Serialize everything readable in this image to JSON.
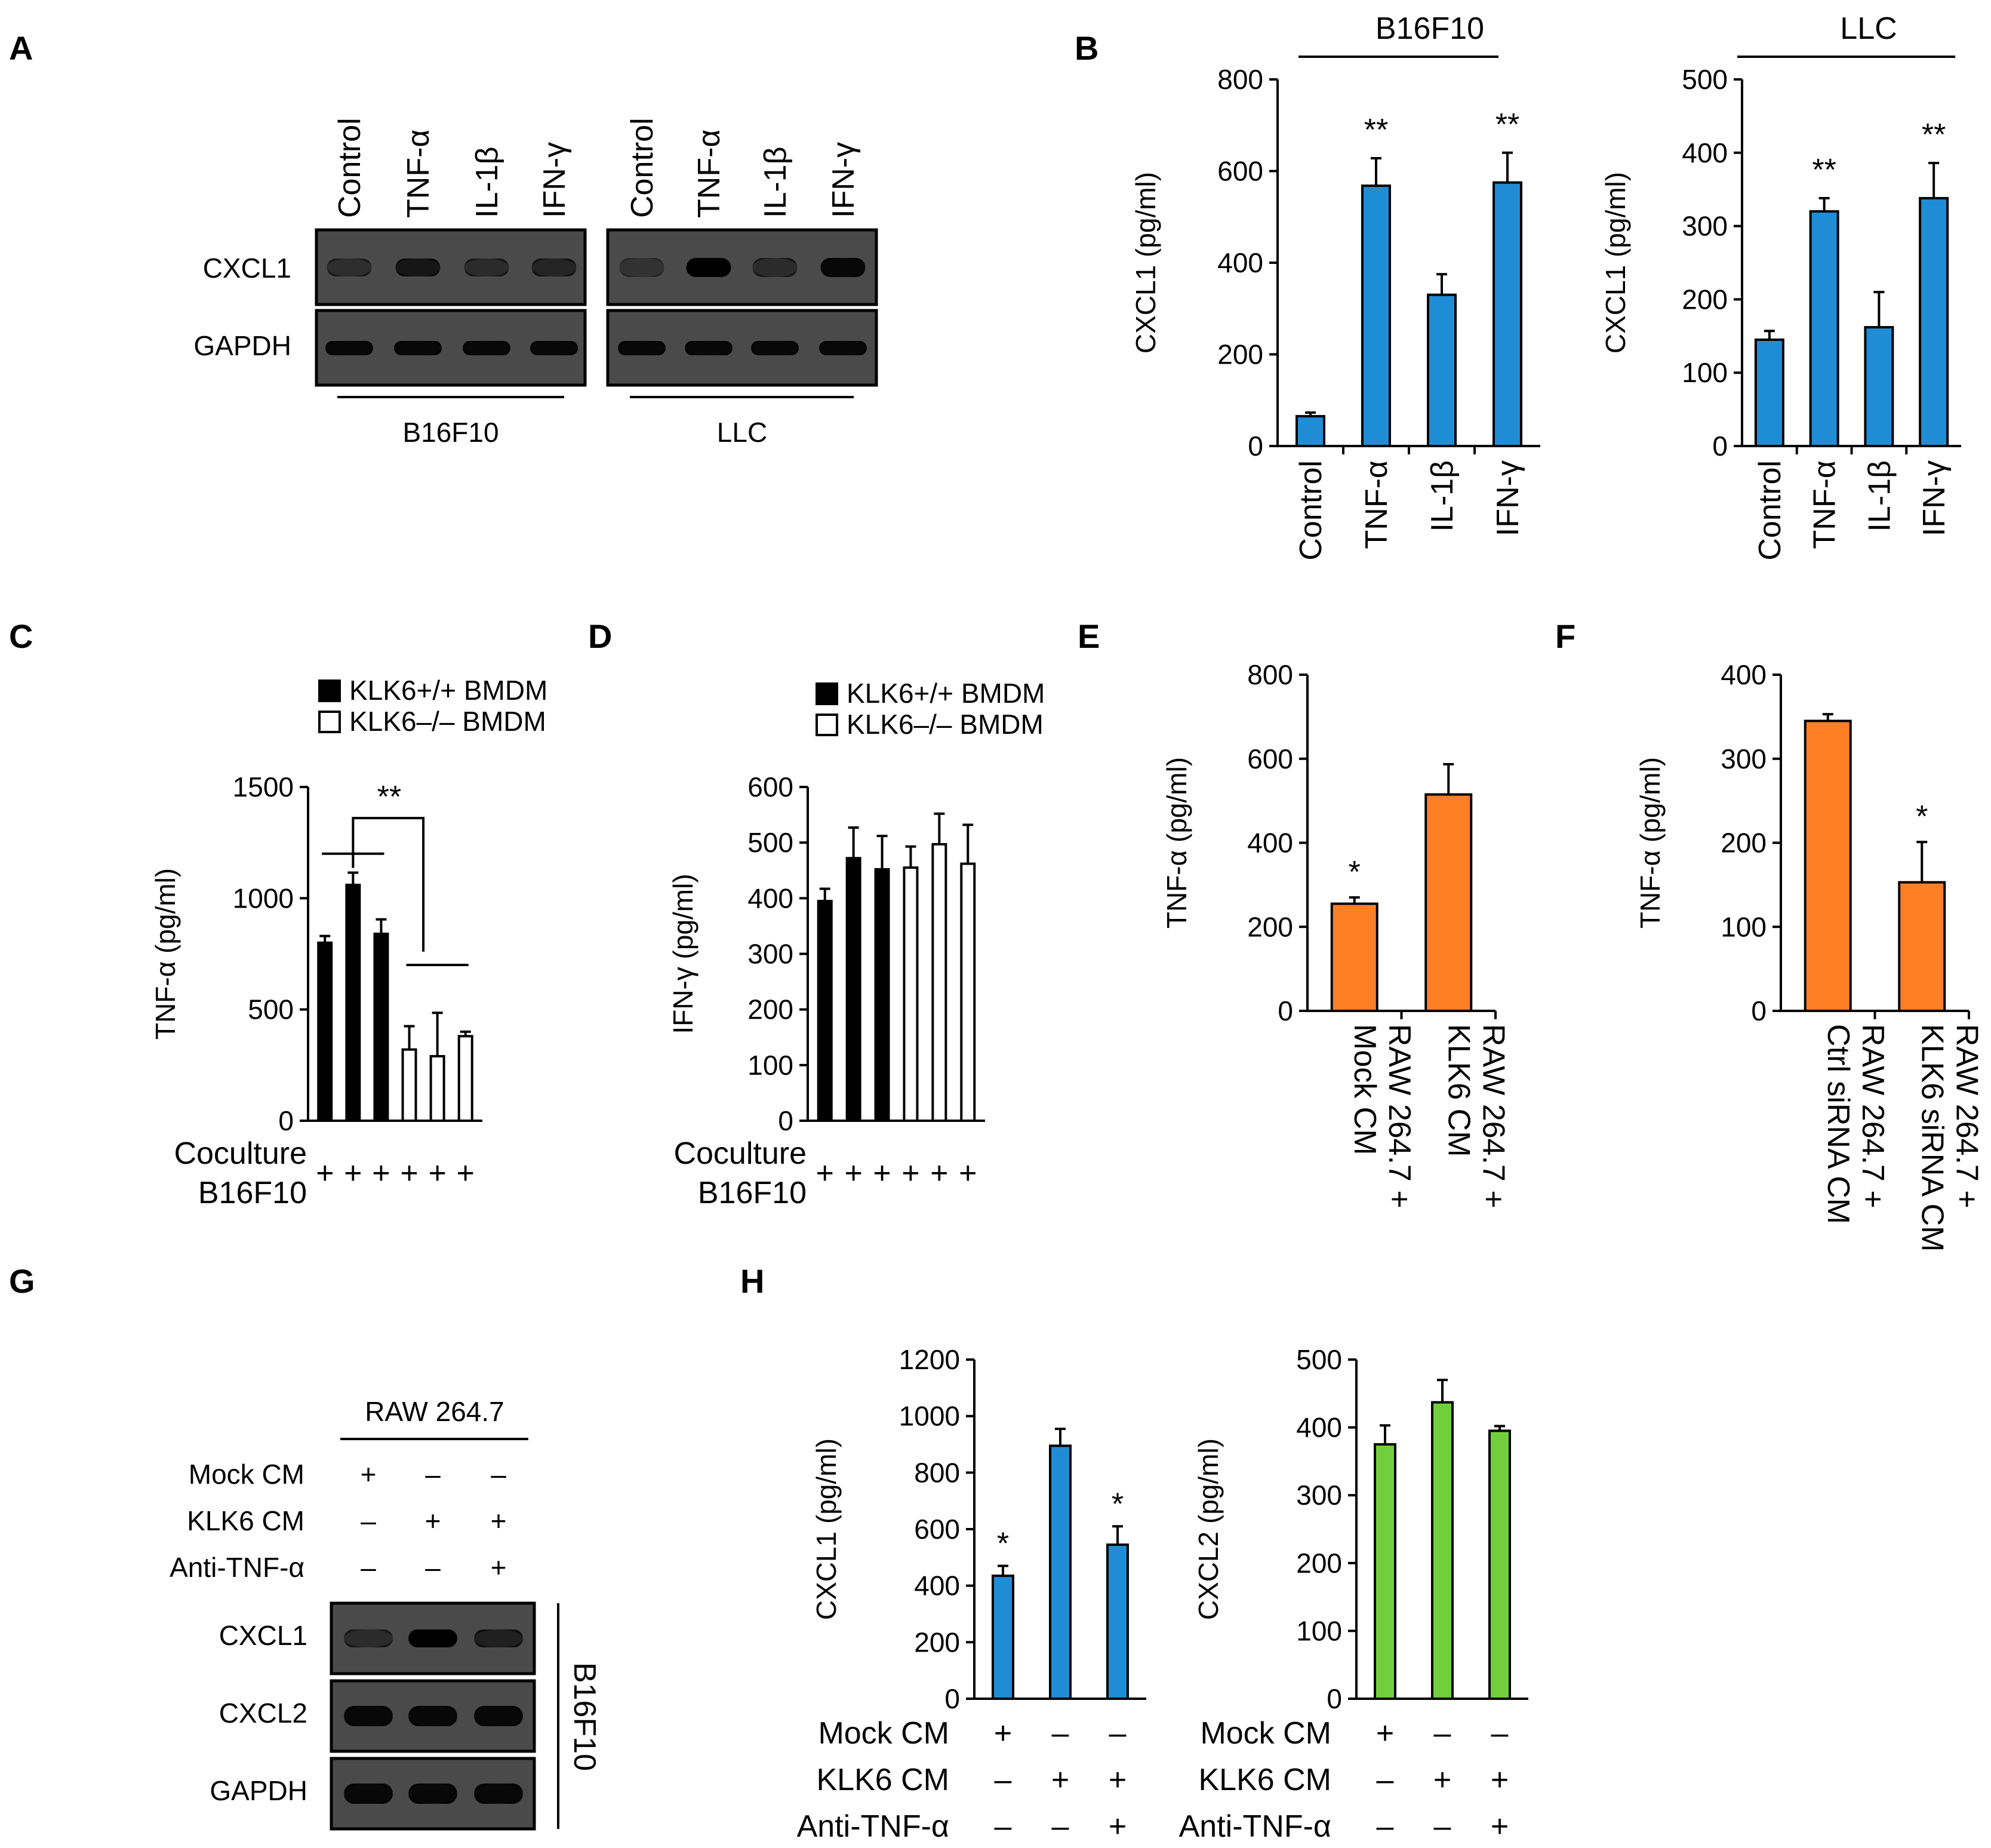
{
  "colors": {
    "blue": "#1f8dd6",
    "orange": "#ff7f27",
    "green": "#72cf3c",
    "black": "#000000",
    "white": "#ffffff",
    "gel_bg": "#4a4a4a"
  },
  "panel_letters": [
    "A",
    "B",
    "C",
    "D",
    "E",
    "F",
    "G",
    "H"
  ],
  "panel_a": {
    "lanes_left": [
      "Control",
      "TNF-α",
      "IL-1β",
      "IFN-γ"
    ],
    "lanes_right": [
      "Control",
      "TNF-α",
      "IL-1β",
      "IFN-γ"
    ],
    "rows": [
      "CXCL1",
      "GAPDH"
    ],
    "group_left": "B16F10",
    "group_right": "LLC",
    "band_intensity": {
      "CXCL1_left": [
        0.55,
        0.85,
        0.6,
        0.7
      ],
      "CXCL1_right": [
        0.35,
        1.0,
        0.6,
        0.95
      ],
      "GAPDH_left": [
        0.95,
        0.95,
        0.95,
        0.95
      ],
      "GAPDH_right": [
        0.95,
        0.95,
        0.95,
        0.95
      ]
    }
  },
  "panel_g": {
    "header": "RAW 264.7",
    "conditions": [
      {
        "label": "Mock CM",
        "marks": [
          "+",
          "–",
          "–"
        ]
      },
      {
        "label": "KLK6 CM",
        "marks": [
          "–",
          "+",
          "+"
        ]
      },
      {
        "label": "Anti-TNF-α",
        "marks": [
          "–",
          "–",
          "+"
        ]
      }
    ],
    "rows": [
      "CXCL1",
      "CXCL2",
      "GAPDH"
    ],
    "side_label": "B16F10",
    "band_intensity": {
      "CXCL1": [
        0.6,
        1.0,
        0.75
      ],
      "CXCL2": [
        0.95,
        0.95,
        0.95
      ],
      "GAPDH": [
        0.95,
        0.95,
        0.95
      ]
    }
  },
  "chart_data": [
    {
      "id": "B1",
      "panel": "B",
      "type": "bar",
      "title": "B16F10",
      "ylabel": "CXCL1 (pg/ml)",
      "ylim": [
        0,
        800
      ],
      "ticks": [
        0,
        200,
        400,
        600,
        800
      ],
      "categories": [
        "Control",
        "TNF-α",
        "IL-1β",
        "IFN-γ"
      ],
      "values": [
        65,
        568,
        330,
        575
      ],
      "errors": [
        8,
        60,
        45,
        65
      ],
      "significance": [
        "",
        "**",
        "",
        "**"
      ],
      "color": "#1f8dd6"
    },
    {
      "id": "B2",
      "panel": "B",
      "type": "bar",
      "title": "LLC",
      "ylabel": "CXCL1 (pg/ml)",
      "ylim": [
        0,
        500
      ],
      "ticks": [
        0,
        100,
        200,
        300,
        400,
        500
      ],
      "categories": [
        "Control",
        "TNF-α",
        "IL-1β",
        "IFN-γ"
      ],
      "values": [
        145,
        320,
        162,
        338
      ],
      "errors": [
        12,
        18,
        48,
        48
      ],
      "significance": [
        "",
        "**",
        "",
        "**"
      ],
      "color": "#1f8dd6"
    },
    {
      "id": "C",
      "panel": "C",
      "type": "bar",
      "ylabel": "TNF-α (pg/ml)",
      "ylim": [
        0,
        1500
      ],
      "ticks": [
        0,
        500,
        1000,
        1500
      ],
      "series": [
        {
          "name": "KLK6+/+ BMDM",
          "values": [
            800,
            1060,
            840
          ],
          "errors": [
            30,
            55,
            65
          ]
        },
        {
          "name": "KLK6–/– BMDM",
          "values": [
            320,
            290,
            380
          ],
          "errors": [
            105,
            195,
            20
          ]
        }
      ],
      "row_labels": [
        "Coculture",
        "B16F10"
      ],
      "marks": [
        "+",
        "+",
        "+",
        "+",
        "+",
        "+"
      ],
      "significance": "**"
    },
    {
      "id": "D",
      "panel": "D",
      "type": "bar",
      "ylabel": "IFN-γ (pg/ml)",
      "ylim": [
        0,
        600
      ],
      "ticks": [
        0,
        100,
        200,
        300,
        400,
        500,
        600
      ],
      "series": [
        {
          "name": "KLK6+/+ BMDM",
          "values": [
            395,
            472,
            452
          ],
          "errors": [
            22,
            55,
            60
          ]
        },
        {
          "name": "KLK6–/– BMDM",
          "values": [
            455,
            497,
            462
          ],
          "errors": [
            38,
            55,
            70
          ]
        }
      ],
      "row_labels": [
        "Coculture",
        "B16F10"
      ],
      "marks": [
        "+",
        "+",
        "+",
        "+",
        "+",
        "+"
      ]
    },
    {
      "id": "E",
      "panel": "E",
      "type": "bar",
      "ylabel": "TNF-α (pg/ml)",
      "ylim": [
        0,
        800
      ],
      "ticks": [
        0,
        200,
        400,
        600,
        800
      ],
      "categories": [
        [
          "RAW 264.7 +",
          "Mock CM"
        ],
        [
          "RAW 264.7 +",
          "KLK6 CM"
        ]
      ],
      "values": [
        255,
        515
      ],
      "errors": [
        15,
        72
      ],
      "significance": [
        "*",
        ""
      ],
      "color": "#ff7f27"
    },
    {
      "id": "F",
      "panel": "F",
      "type": "bar",
      "ylabel": "TNF-α (pg/ml)",
      "ylim": [
        0,
        400
      ],
      "ticks": [
        0,
        100,
        200,
        300,
        400
      ],
      "categories": [
        [
          "RAW 264.7 +",
          "Ctrl siRNA CM"
        ],
        [
          "RAW 264.7 +",
          "KLK6 siRNA CM"
        ]
      ],
      "values": [
        345,
        153
      ],
      "errors": [
        8,
        48
      ],
      "significance": [
        "",
        "*"
      ],
      "color": "#ff7f27"
    },
    {
      "id": "H1",
      "panel": "H",
      "type": "bar",
      "ylabel": "CXCL1 (pg/ml)",
      "ylim": [
        0,
        1200
      ],
      "ticks": [
        0,
        200,
        400,
        600,
        800,
        1000,
        1200
      ],
      "values": [
        435,
        895,
        545
      ],
      "errors": [
        35,
        60,
        65
      ],
      "significance": [
        "*",
        "",
        "*"
      ],
      "color": "#1f8dd6",
      "conditions": [
        {
          "label": "Mock CM",
          "marks": [
            "+",
            "–",
            "–"
          ]
        },
        {
          "label": "KLK6 CM",
          "marks": [
            "–",
            "+",
            "+"
          ]
        },
        {
          "label": "Anti-TNF-α",
          "marks": [
            "–",
            "–",
            "+"
          ]
        }
      ]
    },
    {
      "id": "H2",
      "panel": "H",
      "type": "bar",
      "ylabel": "CXCL2 (pg/ml)",
      "ylim": [
        0,
        500
      ],
      "ticks": [
        0,
        100,
        200,
        300,
        400,
        500
      ],
      "values": [
        375,
        437,
        395
      ],
      "errors": [
        28,
        33,
        7
      ],
      "significance": [
        "",
        "",
        ""
      ],
      "color": "#72cf3c",
      "conditions": [
        {
          "label": "Mock CM",
          "marks": [
            "+",
            "–",
            "–"
          ]
        },
        {
          "label": "KLK6 CM",
          "marks": [
            "–",
            "+",
            "+"
          ]
        },
        {
          "label": "Anti-TNF-α",
          "marks": [
            "–",
            "–",
            "+"
          ]
        }
      ]
    }
  ]
}
